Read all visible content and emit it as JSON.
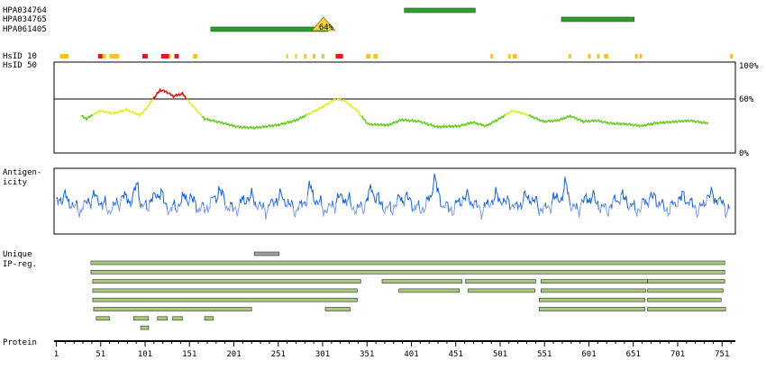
{
  "antibodies": [
    {
      "name": "HPA034764",
      "segments": [
        [
          393,
          473
        ]
      ]
    },
    {
      "name": "HPA034765",
      "segments": [
        [
          570,
          652
        ]
      ]
    },
    {
      "name": "HPA061405",
      "segments": [
        [
          175,
          307
        ]
      ],
      "marker": {
        "position": 302,
        "label": "64%"
      }
    }
  ],
  "track_labels": {
    "hsid10": "HsID 10",
    "hsid50": "HsID 50",
    "antigenicity_line1": "Antigen-",
    "antigenicity_line2": "icity",
    "unique_line1": "Unique",
    "unique_line2": "IP-reg.",
    "protein": "Protein"
  },
  "hsid10": {
    "yellow": [
      [
        5,
        15
      ],
      [
        50,
        57
      ],
      [
        61,
        72
      ],
      [
        120,
        130
      ],
      [
        155,
        160
      ],
      [
        260,
        262
      ],
      [
        270,
        272
      ],
      [
        280,
        283
      ],
      [
        290,
        293
      ],
      [
        300,
        303
      ],
      [
        315,
        320
      ],
      [
        350,
        355
      ],
      [
        358,
        363
      ],
      [
        490,
        493
      ],
      [
        510,
        513
      ],
      [
        515,
        520
      ],
      [
        578,
        581
      ],
      [
        600,
        603
      ],
      [
        610,
        613
      ],
      [
        618,
        623
      ],
      [
        653,
        656
      ],
      [
        658,
        661
      ],
      [
        760,
        763
      ]
    ],
    "red": [
      [
        48,
        53
      ],
      [
        98,
        104
      ],
      [
        119,
        128
      ],
      [
        134,
        139
      ],
      [
        316,
        324
      ]
    ]
  },
  "hsid50": {
    "threshold_label": "60%",
    "max_label": "100%",
    "min_label": "0%",
    "threshold_value": 60
  },
  "unique_regions": [
    [
      224,
      252
    ]
  ],
  "ip_regions": [
    [
      [
        40,
        754
      ]
    ],
    [
      [
        40,
        754
      ]
    ],
    [
      [
        42,
        344
      ],
      [
        368,
        458
      ],
      [
        462,
        541
      ],
      [
        547,
        667
      ],
      [
        667,
        754
      ]
    ],
    [
      [
        42,
        340
      ],
      [
        387,
        455
      ],
      [
        465,
        540
      ],
      [
        547,
        665
      ],
      [
        667,
        752
      ]
    ],
    [
      [
        42,
        340
      ],
      [
        545,
        664
      ],
      [
        667,
        750
      ]
    ],
    [
      [
        43,
        221
      ],
      [
        304,
        332
      ],
      [
        545,
        664
      ],
      [
        667,
        755
      ]
    ],
    [
      [
        46,
        61
      ],
      [
        88,
        105
      ],
      [
        115,
        126
      ],
      [
        132,
        143
      ],
      [
        168,
        178
      ]
    ],
    [
      [
        96,
        105
      ]
    ]
  ],
  "axis": {
    "ticks": [
      "1",
      "51",
      "101",
      "151",
      "201",
      "251",
      "301",
      "351",
      "401",
      "451",
      "501",
      "551",
      "601",
      "651",
      "701",
      "751"
    ],
    "start": 1,
    "end": 770
  },
  "colors": {
    "antibody": "#2e9c2e",
    "marker": "#f2d048",
    "hsid_yellow": "#f7c230",
    "hsid_red": "#d81e1e",
    "similarity_high": "#dd1111",
    "similarity_mid": "#ddee33",
    "similarity_low": "#66cc22",
    "antigenicity_dark": "#1a62c6",
    "antigenicity_light": "#7f9ee6",
    "unique": "#a0a0a0",
    "ip": "#a8c87e",
    "ip_border": "#2e2e2e"
  }
}
